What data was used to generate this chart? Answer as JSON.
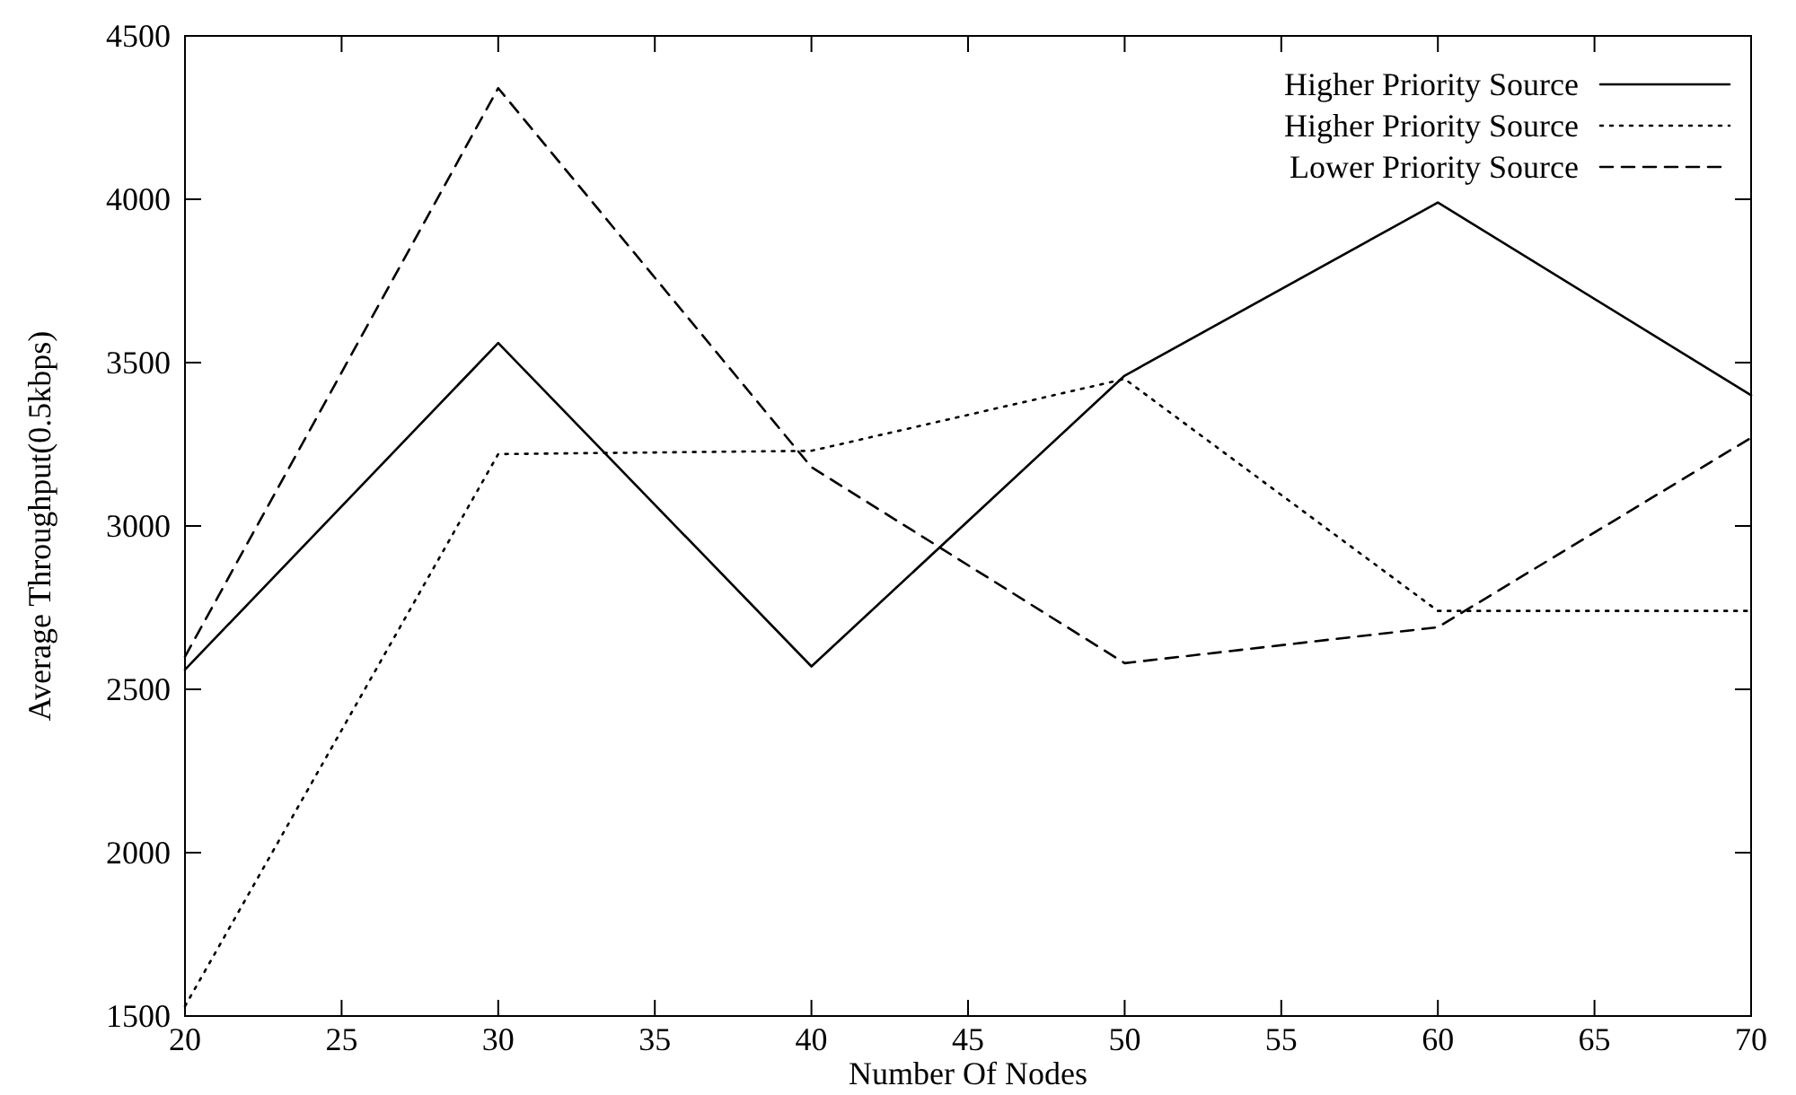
{
  "chart_data": {
    "type": "line",
    "xlabel": "Number Of Nodes",
    "ylabel": "Average Throughput(0.5kbps)",
    "x": [
      20,
      30,
      40,
      50,
      60,
      70
    ],
    "xlim": [
      20,
      70
    ],
    "xticks": [
      20,
      25,
      30,
      35,
      40,
      45,
      50,
      55,
      60,
      65,
      70
    ],
    "ylim": [
      1500,
      4500
    ],
    "yticks": [
      1500,
      2000,
      2500,
      3000,
      3500,
      4000,
      4500
    ],
    "legend": "top right",
    "marker": "none",
    "series": [
      {
        "name": "Higher Priority Source",
        "color": "#000000",
        "line_style": "solid",
        "values": [
          2560,
          3560,
          2570,
          3460,
          3990,
          3400
        ]
      },
      {
        "name": "Higher Priority Source",
        "color": "#000000",
        "line_style": "dotted",
        "values": [
          1530,
          3220,
          3230,
          3450,
          2740,
          2740
        ]
      },
      {
        "name": "Lower Priority Source",
        "color": "#000000",
        "line_style": "dashed",
        "values": [
          2600,
          4340,
          3180,
          2580,
          2690,
          3270
        ]
      }
    ]
  }
}
